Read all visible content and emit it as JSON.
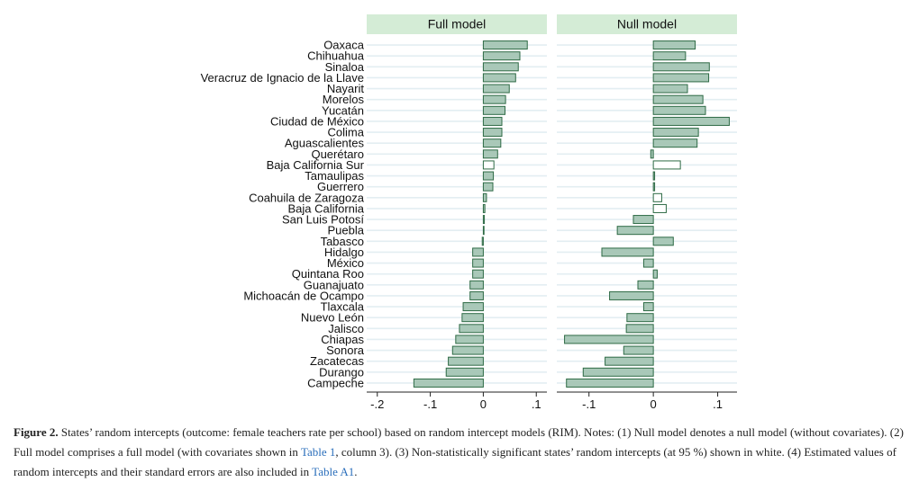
{
  "chart_data": {
    "type": "bar",
    "orientation": "horizontal",
    "categories": [
      "Oaxaca",
      "Chihuahua",
      "Sinaloa",
      "Veracruz de Ignacio de la Llave",
      "Nayarit",
      "Morelos",
      "Yucatán",
      "Ciudad de México",
      "Colima",
      "Aguascalientes",
      "Querétaro",
      "Baja California Sur",
      "Tamaulipas",
      "Guerrero",
      "Coahuila de Zaragoza",
      "Baja California",
      "San Luis Potosí",
      "Puebla",
      "Tabasco",
      "Hidalgo",
      "México",
      "Quintana Roo",
      "Guanajuato",
      "Michoacán de Ocampo",
      "Tlaxcala",
      "Nuevo León",
      "Jalisco",
      "Chiapas",
      "Sonora",
      "Zacatecas",
      "Durango",
      "Campeche"
    ],
    "panels": [
      {
        "title": "Full model",
        "xlim": [
          -0.22,
          0.12
        ],
        "ticks": [
          -0.2,
          -0.1,
          0,
          0.1
        ],
        "tick_labels": [
          "-.2",
          "-.1",
          "0",
          ".1"
        ],
        "values": [
          0.083,
          0.069,
          0.066,
          0.061,
          0.049,
          0.042,
          0.041,
          0.035,
          0.035,
          0.033,
          0.027,
          0.02,
          0.019,
          0.018,
          0.006,
          0.003,
          0.002,
          0.001,
          -0.002,
          -0.02,
          -0.02,
          -0.02,
          -0.025,
          -0.025,
          -0.038,
          -0.04,
          -0.045,
          -0.052,
          -0.058,
          -0.066,
          -0.07,
          -0.131
        ],
        "significant": [
          true,
          true,
          true,
          true,
          true,
          true,
          true,
          true,
          true,
          true,
          true,
          false,
          true,
          true,
          true,
          true,
          true,
          true,
          true,
          true,
          true,
          true,
          true,
          true,
          true,
          true,
          true,
          true,
          true,
          true,
          true,
          true
        ]
      },
      {
        "title": "Null model",
        "xlim": [
          -0.15,
          0.13
        ],
        "ticks": [
          -0.1,
          0,
          0.1
        ],
        "tick_labels": [
          "-.1",
          "0",
          ".1"
        ],
        "values": [
          0.065,
          0.05,
          0.087,
          0.086,
          0.053,
          0.077,
          0.081,
          0.118,
          0.07,
          0.068,
          -0.004,
          0.042,
          0.002,
          0.002,
          0.013,
          0.02,
          -0.031,
          -0.056,
          0.031,
          -0.08,
          -0.015,
          0.006,
          -0.024,
          -0.068,
          -0.015,
          -0.041,
          -0.042,
          -0.138,
          -0.046,
          -0.075,
          -0.109,
          -0.135
        ],
        "significant": [
          true,
          true,
          true,
          true,
          true,
          true,
          true,
          true,
          true,
          true,
          true,
          false,
          true,
          true,
          false,
          false,
          true,
          true,
          true,
          true,
          true,
          true,
          true,
          true,
          true,
          true,
          true,
          true,
          true,
          true,
          true,
          true
        ]
      }
    ]
  },
  "colors": {
    "bar_fill": "#a9c8b8",
    "bar_stroke": "#2e6a45",
    "nonsig_fill": "#ffffff",
    "header_bg": "#d4ecd6",
    "gridline": "#e3eef2",
    "axis": "#222222"
  },
  "caption": {
    "fig_label": "Figure 2.",
    "text1": " States’ random intercepts (outcome: female teachers rate per school) based on random intercept models (RIM). Notes: (1) Null model denotes a null model (without covariates). (2) Full model comprises a full model (with covariates shown in ",
    "link1": "Table 1",
    "text2": ", column 3). (3) Non-statistically significant states’ random intercepts (at 95 %) shown in white. (4) Estimated values of random intercepts and their standard errors are also included in ",
    "link2": "Table A1",
    "text3": "."
  }
}
